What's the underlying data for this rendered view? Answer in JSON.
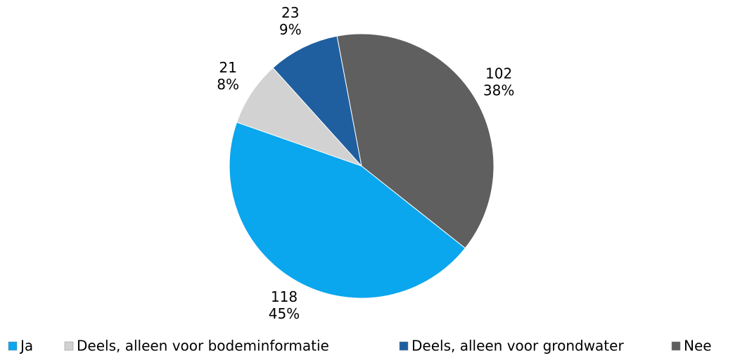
{
  "chart_data": {
    "type": "pie",
    "categories": [
      "Ja",
      "Deels, alleen voor bodeminformatie",
      "Deels, alleen voor grondwater",
      "Nee"
    ],
    "values": [
      118,
      21,
      23,
      102
    ],
    "percent_labels": [
      "45%",
      "8%",
      "9%",
      "38%"
    ],
    "colors": [
      "#0aa6ee",
      "#d2d2d2",
      "#1f5f9f",
      "#5f5f5f"
    ],
    "legend": "bottom"
  }
}
